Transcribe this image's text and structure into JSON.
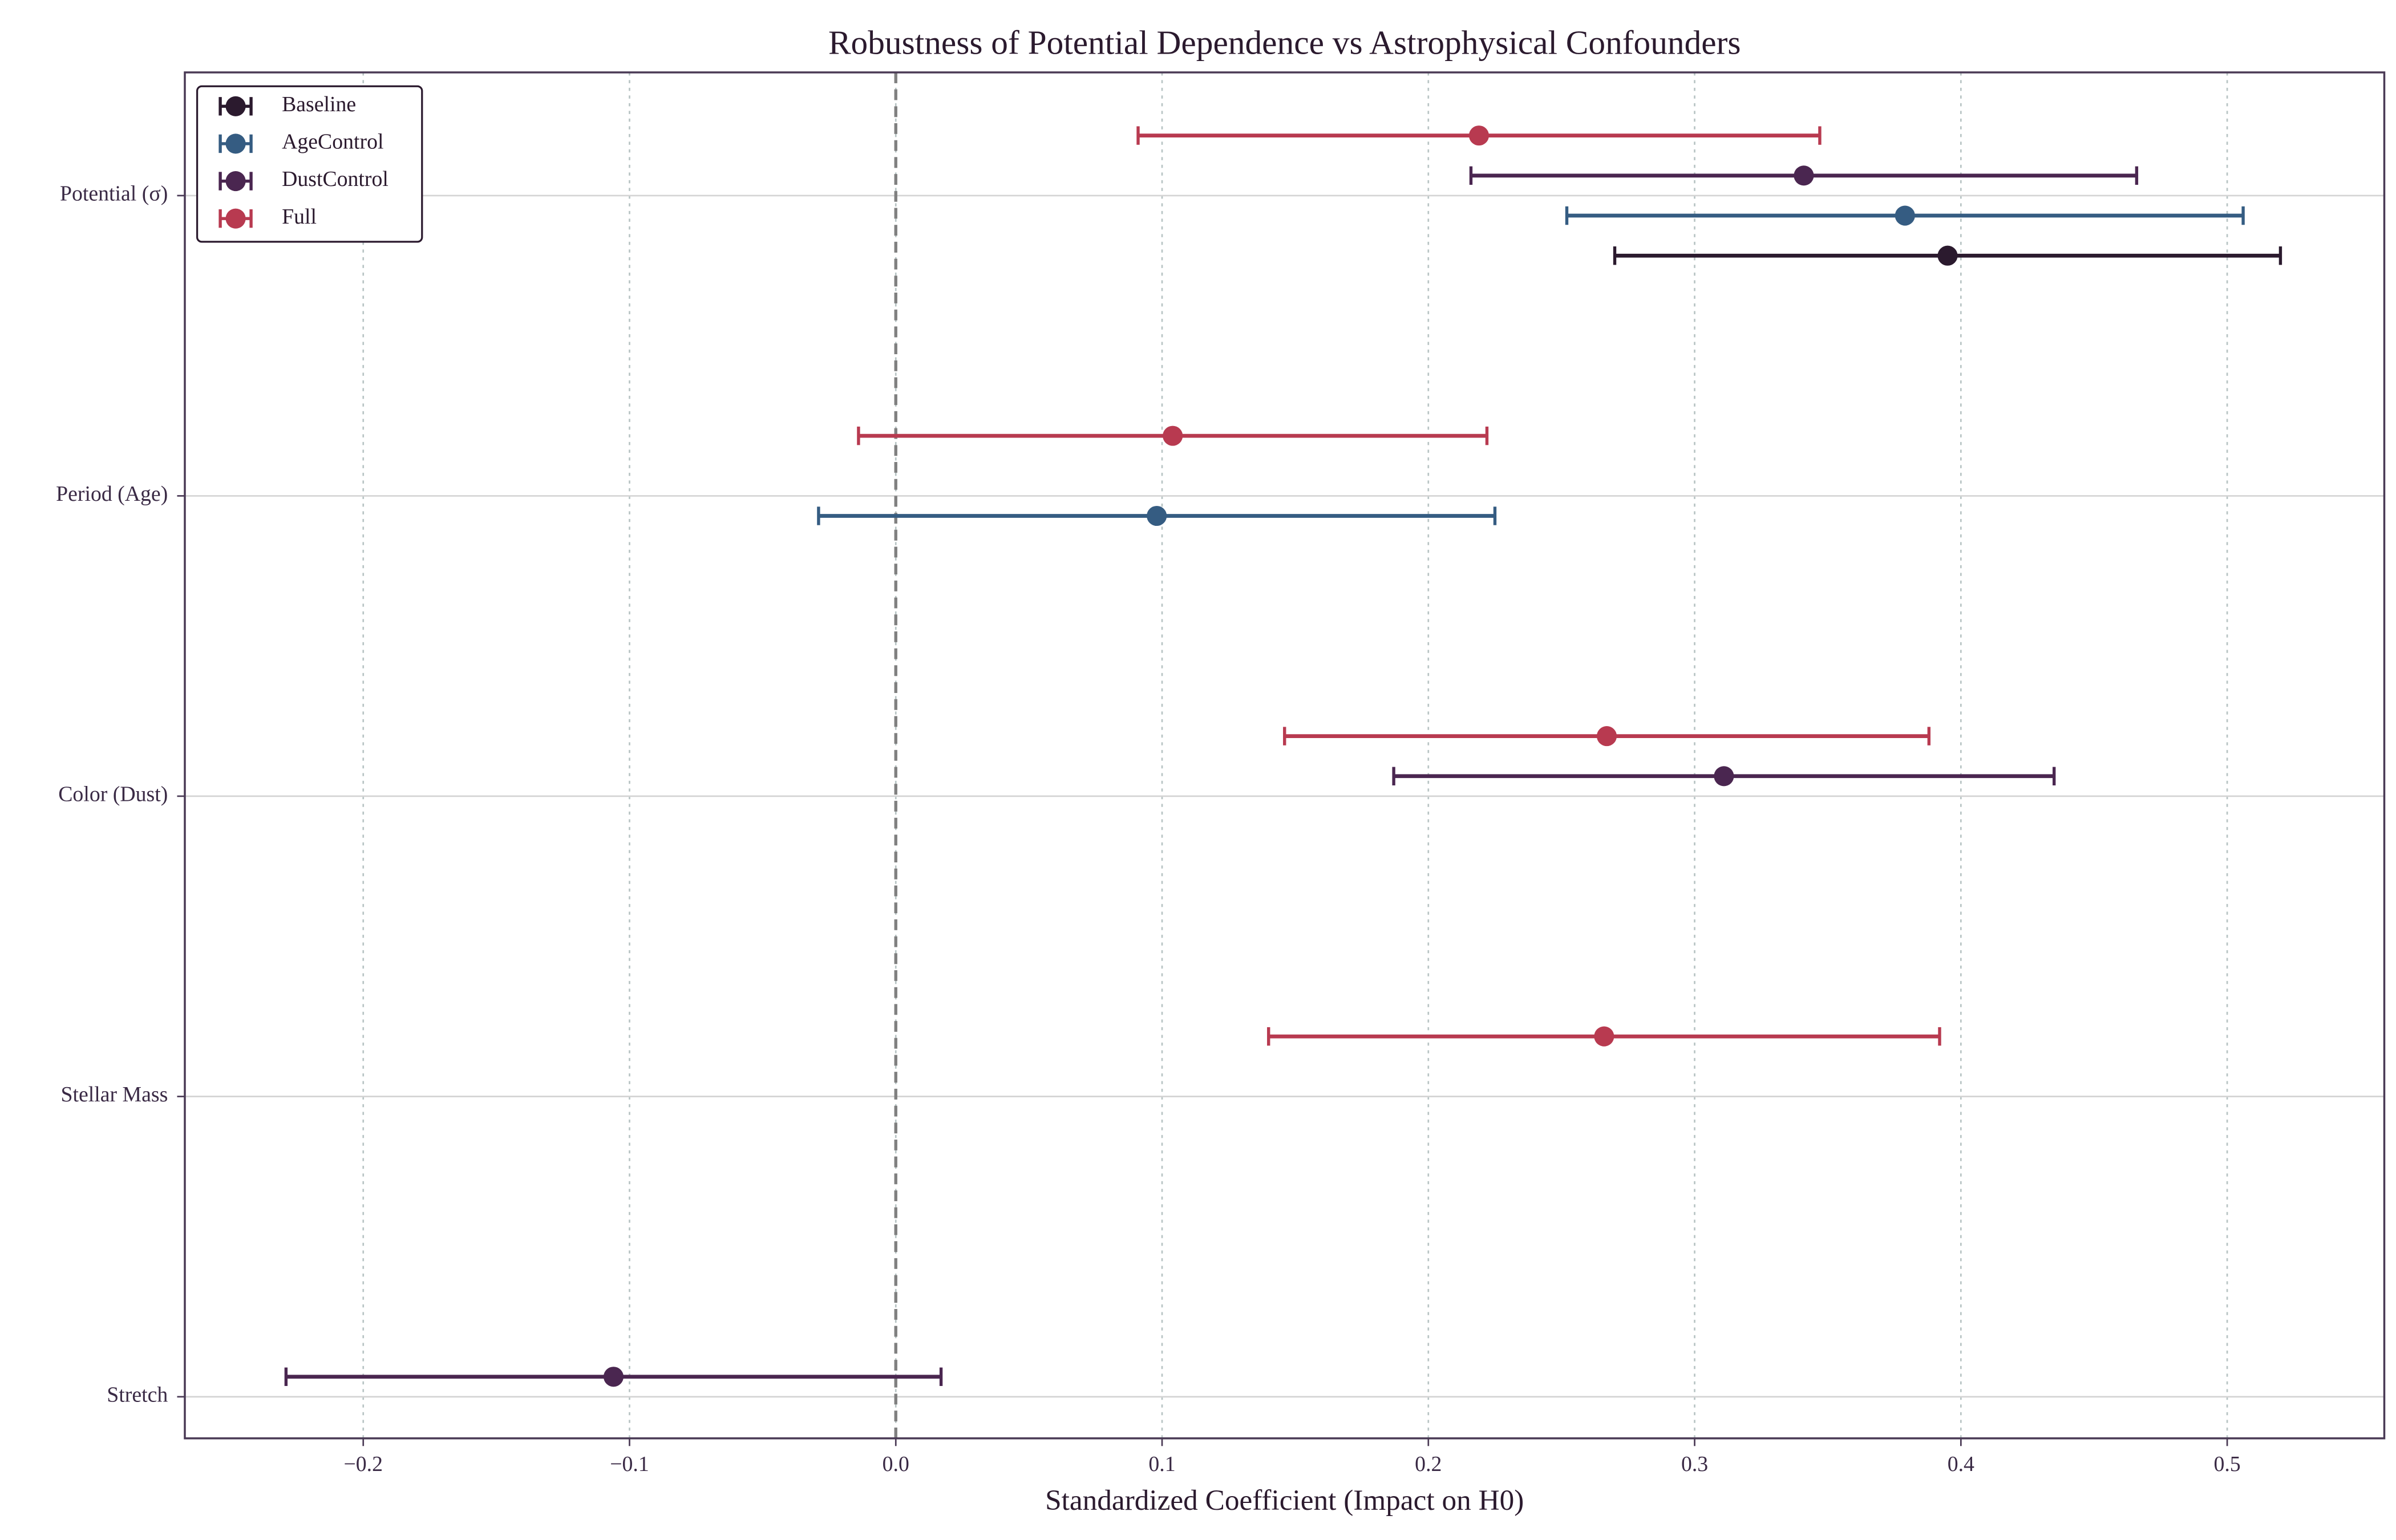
{
  "chart_data": {
    "type": "errorbar",
    "title": "Robustness of Potential Dependence vs Astrophysical Confounders",
    "xlabel": "Standardized Coefficient (Impact on H0)",
    "categories": [
      "Potential (σ)",
      "Period (Age)",
      "Color (Dust)",
      "Stellar Mass",
      "Stretch"
    ],
    "series": [
      {
        "name": "Baseline",
        "color": "#2b1a2e",
        "values": [
          0.395,
          null,
          null,
          null,
          null
        ],
        "errors": [
          0.125,
          null,
          null,
          null,
          null
        ]
      },
      {
        "name": "AgeControl",
        "color": "#355c82",
        "values": [
          0.379,
          0.098,
          null,
          null,
          null
        ],
        "errors": [
          0.127,
          0.127,
          null,
          null,
          null
        ]
      },
      {
        "name": "DustControl",
        "color": "#4a2650",
        "values": [
          0.341,
          null,
          0.311,
          null,
          -0.106
        ],
        "errors": [
          0.125,
          null,
          0.124,
          null,
          0.123
        ]
      },
      {
        "name": "Full",
        "color": "#b83a50",
        "values": [
          0.219,
          0.104,
          0.267,
          0.266,
          null
        ],
        "errors": [
          0.128,
          0.118,
          0.121,
          0.126,
          null
        ]
      }
    ],
    "xlim": [
      -0.267,
      0.559
    ],
    "xticks": [
      {
        "value": -0.2,
        "label": "−0.2"
      },
      {
        "value": -0.1,
        "label": "−0.1"
      },
      {
        "value": 0,
        "label": "0.0"
      },
      0.1,
      0.2,
      0.3,
      0.4,
      0.5
    ],
    "reference_line": 0,
    "grid": true,
    "legend": "upper left"
  }
}
